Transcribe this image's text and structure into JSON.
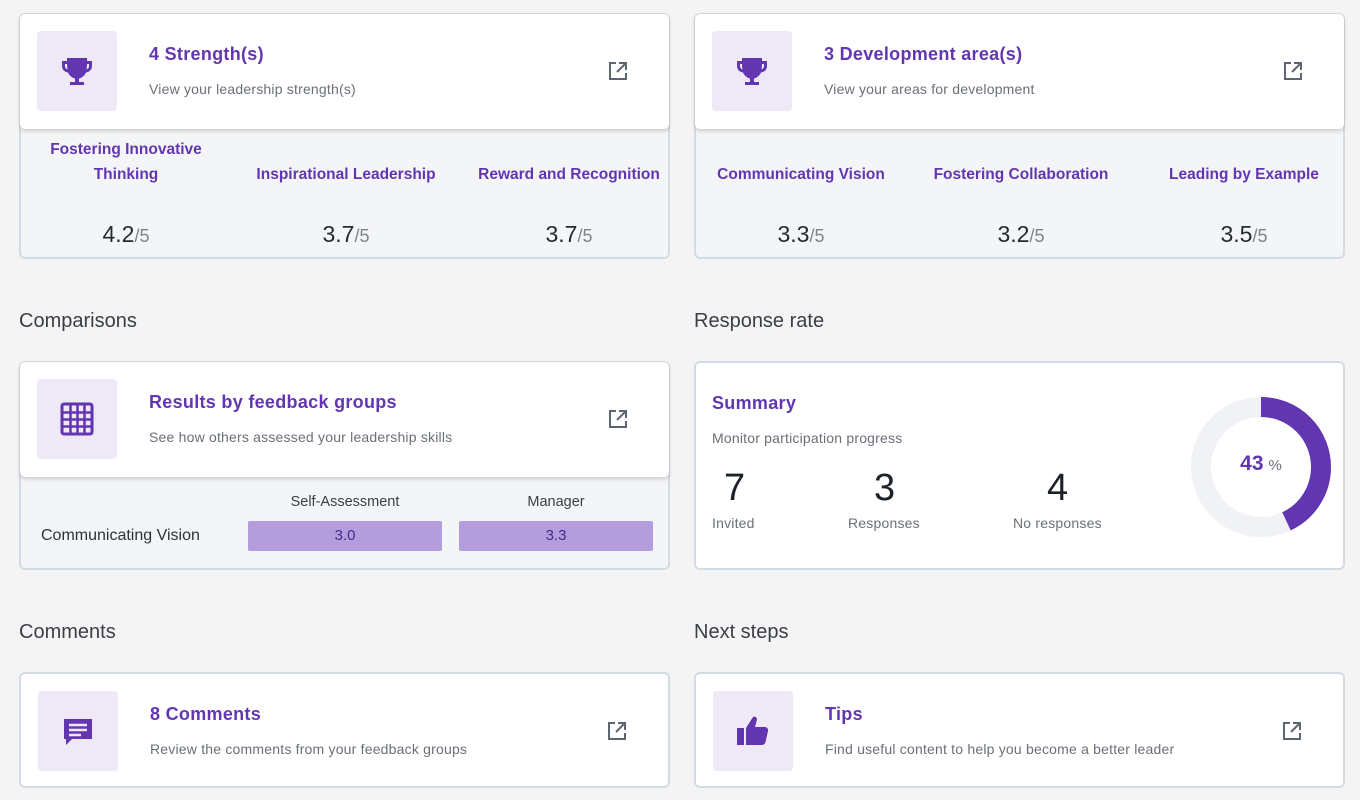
{
  "colors": {
    "accent": "#6236b1",
    "icon_bg": "#efe8f7",
    "bar_fill": "#b39ddc",
    "donut_track": "#f1f2f5",
    "border": "#d5dbe2"
  },
  "strengths": {
    "title": "4 Strength(s)",
    "subtitle": "View your leadership strength(s)",
    "icon": "trophy-icon",
    "items": [
      {
        "label": "Fostering Innovative Thinking",
        "score": "4.2",
        "max": "/5"
      },
      {
        "label": "Inspirational Leadership",
        "score": "3.7",
        "max": "/5"
      },
      {
        "label": "Reward and Recognition",
        "score": "3.7",
        "max": "/5"
      }
    ]
  },
  "development": {
    "title": "3 Development area(s)",
    "subtitle": "View your areas for development",
    "icon": "trophy-icon",
    "items": [
      {
        "label": "Communicating Vision",
        "score": "3.3",
        "max": "/5"
      },
      {
        "label": "Fostering Collaboration",
        "score": "3.2",
        "max": "/5"
      },
      {
        "label": "Leading by Example",
        "score": "3.5",
        "max": "/5"
      }
    ]
  },
  "comparisons": {
    "section_title": "Comparisons",
    "title": "Results by feedback groups",
    "subtitle": "See how others assessed your leadership skills",
    "icon": "grid-icon",
    "columns": [
      "Self-Assessment",
      "Manager"
    ],
    "row_label": "Communicating Vision",
    "values": [
      "3.0",
      "3.3"
    ]
  },
  "response_rate": {
    "section_title": "Response rate",
    "title": "Summary",
    "subtitle": "Monitor participation progress",
    "stats": [
      {
        "value": "7",
        "label": "Invited"
      },
      {
        "value": "3",
        "label": "Responses"
      },
      {
        "value": "4",
        "label": "No responses"
      }
    ],
    "percent": 43,
    "percent_label": "43",
    "percent_unit": "%"
  },
  "comments": {
    "section_title": "Comments",
    "title": "8 Comments",
    "subtitle": "Review the comments from your feedback groups",
    "icon": "comment-icon"
  },
  "next_steps": {
    "section_title": "Next steps",
    "title": "Tips",
    "subtitle": "Find useful content to help you become a better leader",
    "icon": "thumbs-up-icon"
  }
}
